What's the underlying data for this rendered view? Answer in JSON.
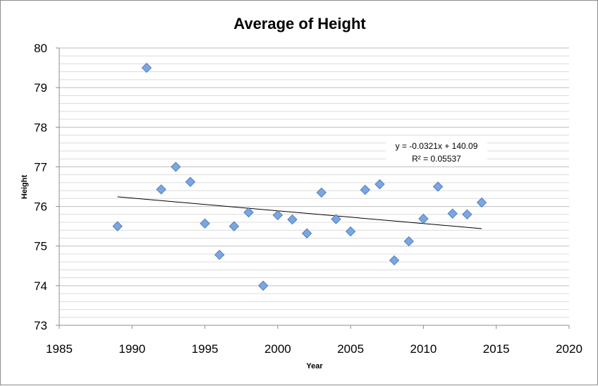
{
  "chart_data": {
    "type": "scatter",
    "title": "Average of Height",
    "xlabel": "Year",
    "ylabel": "Height",
    "xlim": [
      1985,
      2020
    ],
    "ylim": [
      73,
      80
    ],
    "xticks": [
      1985,
      1990,
      1995,
      2000,
      2005,
      2010,
      2015,
      2020
    ],
    "yticks": [
      73,
      74,
      75,
      76,
      77,
      78,
      79,
      80
    ],
    "grid": "horizontal major and minor",
    "legend": "none",
    "marker": "diamond",
    "marker_color": "#7ba7e0",
    "points": [
      {
        "x": 1989,
        "y": 75.5
      },
      {
        "x": 1991,
        "y": 79.5
      },
      {
        "x": 1992,
        "y": 76.43
      },
      {
        "x": 1993,
        "y": 77.0
      },
      {
        "x": 1994,
        "y": 76.62
      },
      {
        "x": 1995,
        "y": 75.57
      },
      {
        "x": 1996,
        "y": 74.78
      },
      {
        "x": 1997,
        "y": 75.5
      },
      {
        "x": 1998,
        "y": 75.85
      },
      {
        "x": 1999,
        "y": 74.0
      },
      {
        "x": 2000,
        "y": 75.78
      },
      {
        "x": 2001,
        "y": 75.67
      },
      {
        "x": 2002,
        "y": 75.32
      },
      {
        "x": 2003,
        "y": 76.35
      },
      {
        "x": 2004,
        "y": 75.68
      },
      {
        "x": 2005,
        "y": 75.37
      },
      {
        "x": 2006,
        "y": 76.42
      },
      {
        "x": 2007,
        "y": 76.56
      },
      {
        "x": 2008,
        "y": 74.64
      },
      {
        "x": 2009,
        "y": 75.12
      },
      {
        "x": 2010,
        "y": 75.69
      },
      {
        "x": 2011,
        "y": 76.5
      },
      {
        "x": 2012,
        "y": 75.82
      },
      {
        "x": 2013,
        "y": 75.8
      },
      {
        "x": 2014,
        "y": 76.1
      }
    ],
    "trendline": {
      "type": "linear",
      "slope": -0.0321,
      "intercept": 140.09,
      "x_start": 1989,
      "x_end": 2014,
      "equation_label": "y = -0.0321x + 140.09",
      "r2_label": "R² = 0.05537"
    }
  }
}
